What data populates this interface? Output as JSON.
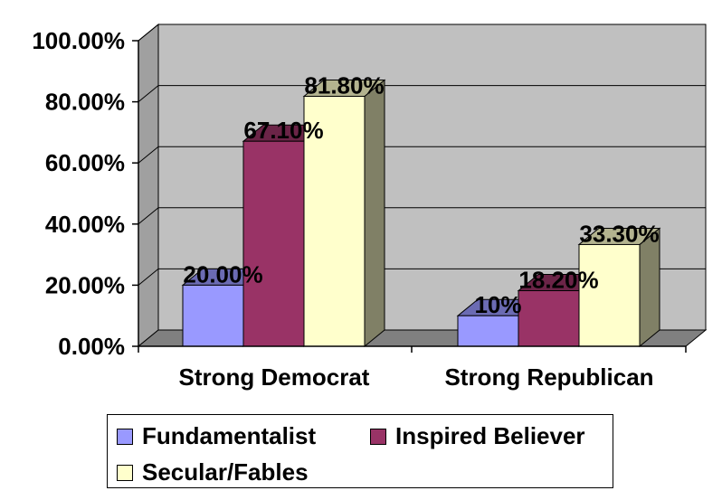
{
  "chart_data": {
    "type": "bar",
    "categories": [
      "Strong Democrat",
      "Strong Republican"
    ],
    "series": [
      {
        "name": "Fundamentalist",
        "values": [
          20.0,
          10.0
        ],
        "labels": [
          "20.00%",
          "10%"
        ],
        "color": "#9999ff"
      },
      {
        "name": "Inspired Believer",
        "values": [
          67.1,
          18.2
        ],
        "labels": [
          "67.10%",
          "18.20%"
        ],
        "color": "#993366"
      },
      {
        "name": "Secular/Fables",
        "values": [
          81.8,
          33.3
        ],
        "labels": [
          "81.80%",
          "33.30%"
        ],
        "color": "#ffffcc"
      }
    ],
    "yticks": [
      "0.00%",
      "20.00%",
      "40.00%",
      "60.00%",
      "80.00%",
      "100.00%"
    ],
    "ylim": [
      0,
      100
    ],
    "grid": true,
    "legend_position": "bottom"
  }
}
